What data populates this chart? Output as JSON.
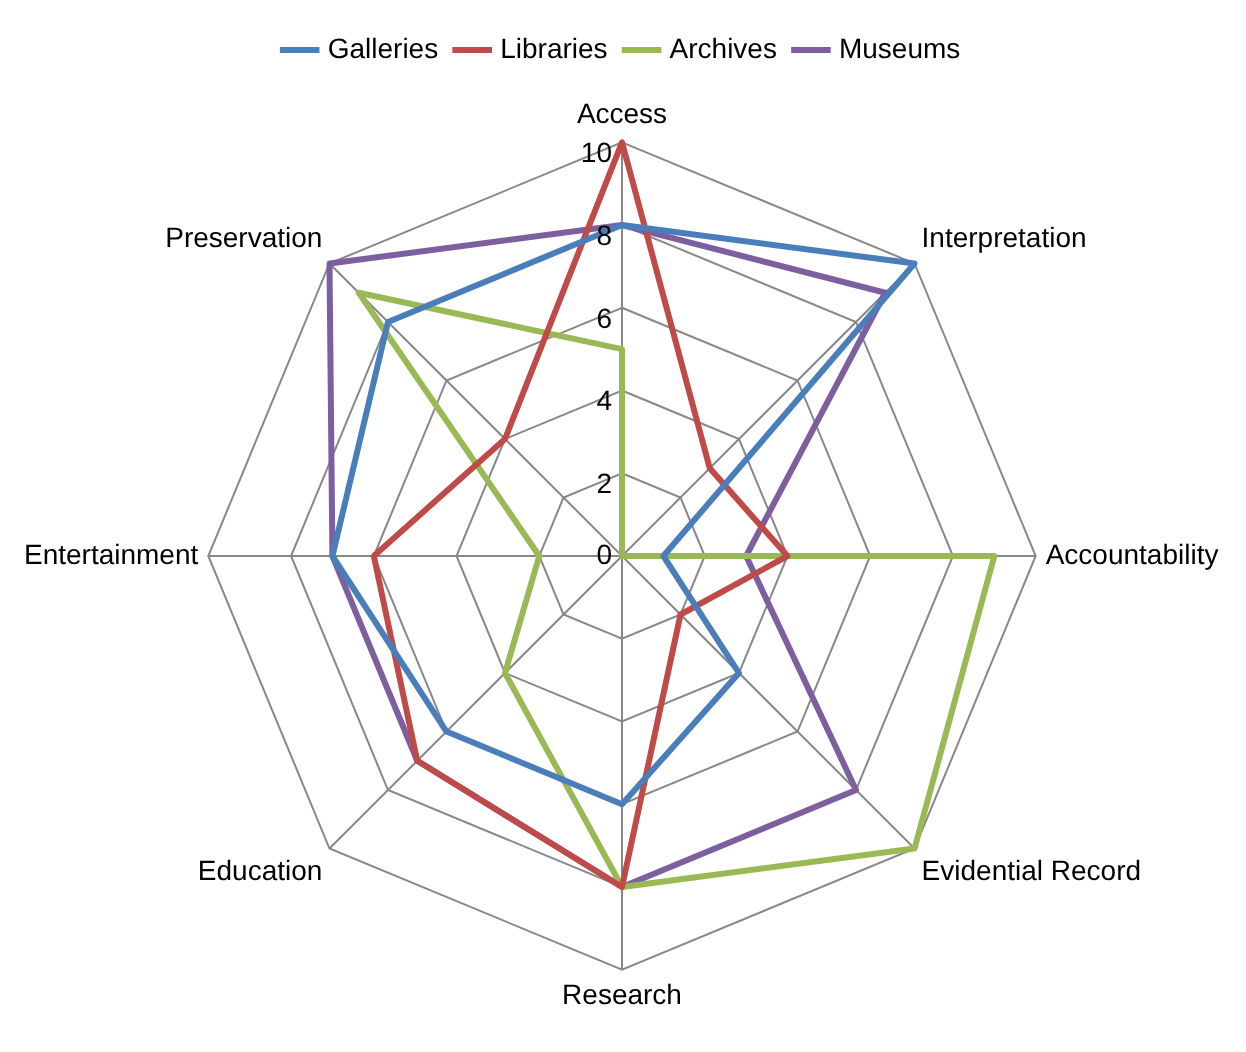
{
  "chart_data": {
    "type": "radar",
    "categories": [
      "Access",
      "Interpretation",
      "Accountability",
      "Evidential Record",
      "Research",
      "Education",
      "Entertainment",
      "Preservation"
    ],
    "series": [
      {
        "name": "Galleries",
        "color": "#4a7ebb",
        "values": [
          8,
          10,
          1,
          4,
          6,
          6,
          7,
          8
        ]
      },
      {
        "name": "Libraries",
        "color": "#be4b48",
        "values": [
          10,
          3,
          4,
          2,
          8,
          7,
          6,
          4
        ]
      },
      {
        "name": "Archives",
        "color": "#98b954",
        "values": [
          5,
          0,
          9,
          10,
          8,
          4,
          2,
          9
        ]
      },
      {
        "name": "Museums",
        "color": "#7d5fa0",
        "values": [
          8,
          9,
          3,
          8,
          8,
          7,
          7,
          10
        ]
      }
    ],
    "ylim": [
      0,
      10
    ],
    "yticks": [
      0,
      2,
      4,
      6,
      8,
      10
    ],
    "grid": true,
    "legend": "top",
    "marker": "none"
  }
}
